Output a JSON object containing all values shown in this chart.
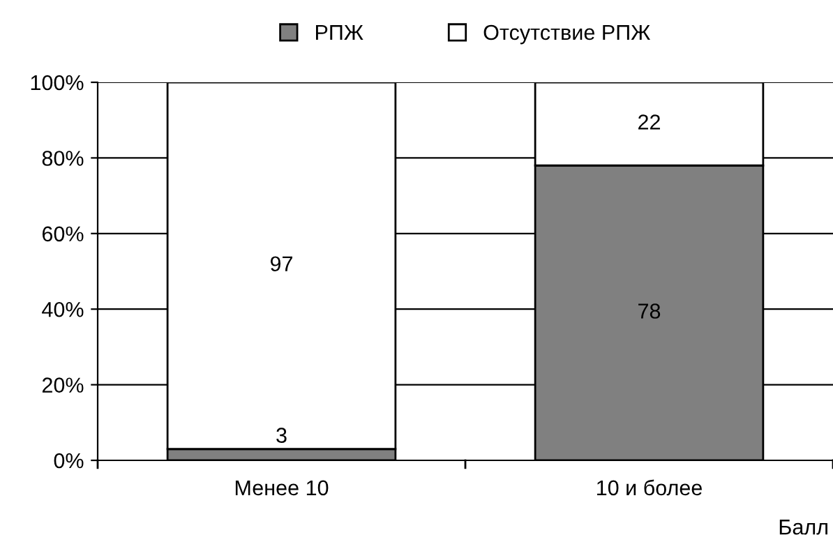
{
  "chart_data": {
    "type": "bar",
    "stacked": true,
    "categories": [
      "Менее 10",
      "10 и более"
    ],
    "series": [
      {
        "name": "РПЖ",
        "color": "#808080",
        "values": [
          3,
          78
        ]
      },
      {
        "name": "Отсутствие РПЖ",
        "color": "#ffffff",
        "values": [
          97,
          22
        ]
      }
    ],
    "ylim": [
      0,
      100
    ],
    "yticks": [
      {
        "value": 0,
        "label": "0%"
      },
      {
        "value": 20,
        "label": "20%"
      },
      {
        "value": 40,
        "label": "40%"
      },
      {
        "value": 60,
        "label": "60%"
      },
      {
        "value": 80,
        "label": "80%"
      },
      {
        "value": 100,
        "label": "100%"
      }
    ],
    "xlabel": "Балл",
    "grid": "y",
    "legend": "top",
    "data_labels": true
  }
}
